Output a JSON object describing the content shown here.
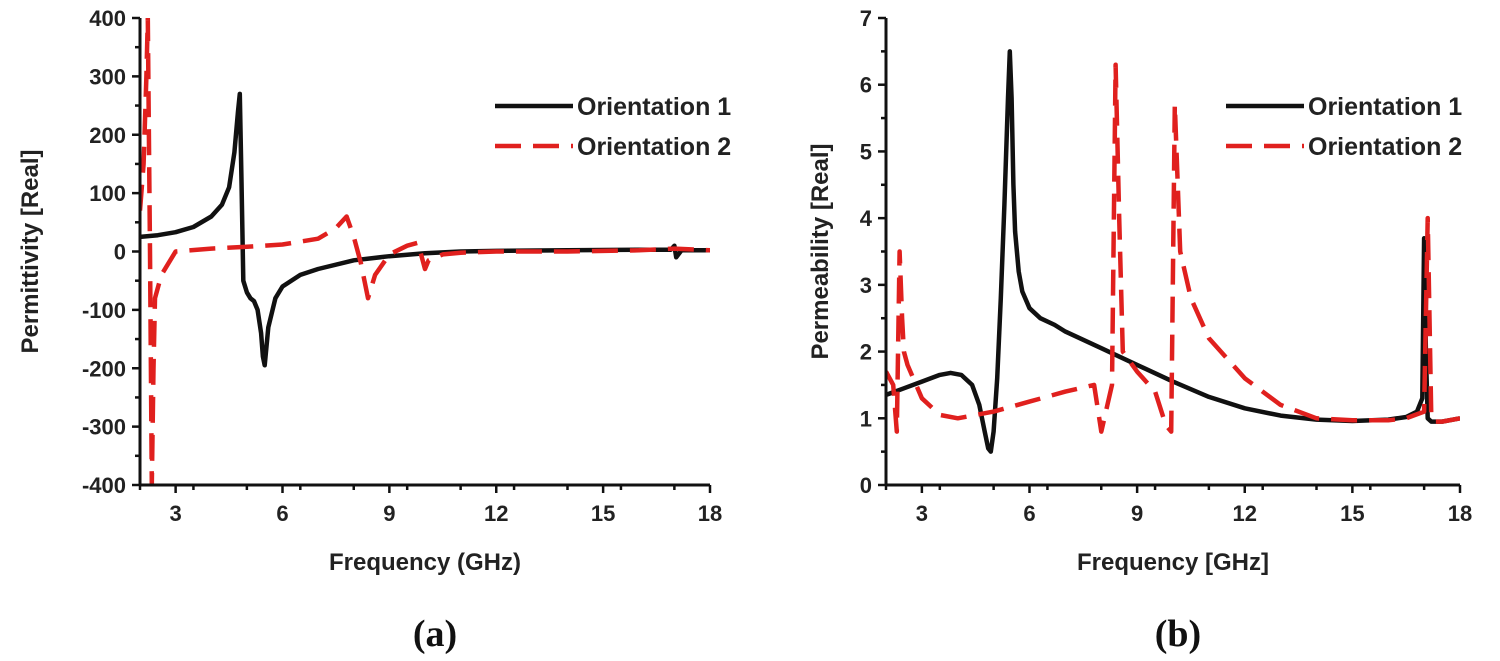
{
  "chart_data": [
    {
      "type": "line",
      "panel_label": "(a)",
      "xlabel": "Frequency (GHz)",
      "ylabel": "Permittivity [Real]",
      "xlim": [
        2,
        18
      ],
      "ylim": [
        -400,
        400
      ],
      "xticks": [
        3,
        6,
        9,
        12,
        15,
        18
      ],
      "yticks": [
        -400,
        -300,
        -200,
        -100,
        0,
        100,
        200,
        300,
        400
      ],
      "legend_position": "top-right",
      "series": [
        {
          "name": "Orientation 1",
          "color": "#111111",
          "style": "solid",
          "x": [
            2,
            2.5,
            3,
            3.5,
            4,
            4.3,
            4.5,
            4.65,
            4.75,
            4.8,
            4.85,
            4.9,
            5.0,
            5.1,
            5.2,
            5.3,
            5.4,
            5.45,
            5.5,
            5.6,
            5.8,
            6.0,
            6.5,
            7,
            8,
            9,
            10,
            11,
            12,
            14,
            16,
            16.9,
            17.0,
            17.05,
            17.2,
            18
          ],
          "y": [
            25,
            28,
            33,
            42,
            60,
            80,
            110,
            170,
            240,
            270,
            120,
            -50,
            -70,
            -80,
            -85,
            -100,
            -140,
            -180,
            -195,
            -130,
            -80,
            -60,
            -40,
            -30,
            -15,
            -8,
            -3,
            0,
            1,
            2,
            3,
            3,
            10,
            -10,
            2,
            2
          ]
        },
        {
          "name": "Orientation 2",
          "color": "#e0201e",
          "style": "dashed",
          "x": [
            2,
            2.1,
            2.18,
            2.22,
            2.28,
            2.33,
            2.38,
            2.42,
            2.6,
            3,
            4,
            5,
            6,
            7,
            7.5,
            7.8,
            8.0,
            8.2,
            8.4,
            8.6,
            9,
            9.5,
            9.8,
            10.0,
            10.1,
            10.5,
            11,
            12,
            14,
            16,
            17,
            18
          ],
          "y": [
            70,
            150,
            300,
            400,
            0,
            -400,
            -200,
            -80,
            -40,
            0,
            5,
            8,
            12,
            22,
            40,
            60,
            25,
            -20,
            -80,
            -40,
            -5,
            10,
            15,
            -30,
            -15,
            -5,
            -2,
            0,
            0,
            2,
            5,
            2
          ]
        }
      ]
    },
    {
      "type": "line",
      "panel_label": "(b)",
      "xlabel": "Frequency [GHz]",
      "ylabel": "Permeability [Real]",
      "xlim": [
        2,
        18
      ],
      "ylim": [
        0,
        7
      ],
      "xticks": [
        3,
        6,
        9,
        12,
        15,
        18
      ],
      "yticks": [
        0,
        1,
        2,
        3,
        4,
        5,
        6,
        7
      ],
      "legend_position": "top-right",
      "series": [
        {
          "name": "Orientation 1",
          "color": "#111111",
          "style": "solid",
          "x": [
            2,
            2.5,
            3,
            3.5,
            3.8,
            4.1,
            4.4,
            4.6,
            4.75,
            4.85,
            4.92,
            5.0,
            5.1,
            5.2,
            5.3,
            5.4,
            5.45,
            5.5,
            5.55,
            5.6,
            5.7,
            5.8,
            6.0,
            6.3,
            6.7,
            7,
            8,
            9,
            10,
            11,
            12,
            13,
            14,
            15,
            16,
            16.5,
            16.8,
            16.95,
            17.0,
            17.05,
            17.1,
            17.2,
            17.3,
            17.5,
            18
          ],
          "y": [
            1.35,
            1.45,
            1.55,
            1.65,
            1.68,
            1.65,
            1.5,
            1.2,
            0.8,
            0.55,
            0.5,
            0.8,
            1.6,
            2.8,
            4.2,
            5.8,
            6.5,
            5.8,
            4.5,
            3.8,
            3.2,
            2.9,
            2.65,
            2.5,
            2.4,
            2.3,
            2.05,
            1.8,
            1.55,
            1.32,
            1.15,
            1.04,
            0.98,
            0.96,
            0.98,
            1.02,
            1.1,
            1.3,
            3.7,
            2.0,
            1.0,
            0.95,
            0.95,
            0.95,
            1.0
          ]
        },
        {
          "name": "Orientation 2",
          "color": "#e0201e",
          "style": "dashed",
          "x": [
            2,
            2.2,
            2.3,
            2.38,
            2.45,
            2.5,
            2.6,
            3,
            3.5,
            4,
            5,
            6,
            7,
            7.8,
            8.0,
            8.3,
            8.4,
            8.5,
            8.6,
            9,
            9.5,
            9.8,
            9.95,
            10.05,
            10.2,
            10.5,
            11,
            12,
            13,
            14,
            15,
            16,
            16.5,
            17.0,
            17.1,
            17.15,
            17.2,
            17.3,
            17.5,
            18
          ],
          "y": [
            1.7,
            1.5,
            0.8,
            3.5,
            2.5,
            2.0,
            1.8,
            1.3,
            1.05,
            1.0,
            1.1,
            1.25,
            1.4,
            1.5,
            0.8,
            1.5,
            6.3,
            4.0,
            2.0,
            1.7,
            1.4,
            0.9,
            0.8,
            5.7,
            3.5,
            2.8,
            2.2,
            1.6,
            1.2,
            1.0,
            0.97,
            0.97,
            1.0,
            1.1,
            4.0,
            2.5,
            1.0,
            0.95,
            0.95,
            1.0
          ]
        }
      ]
    }
  ]
}
